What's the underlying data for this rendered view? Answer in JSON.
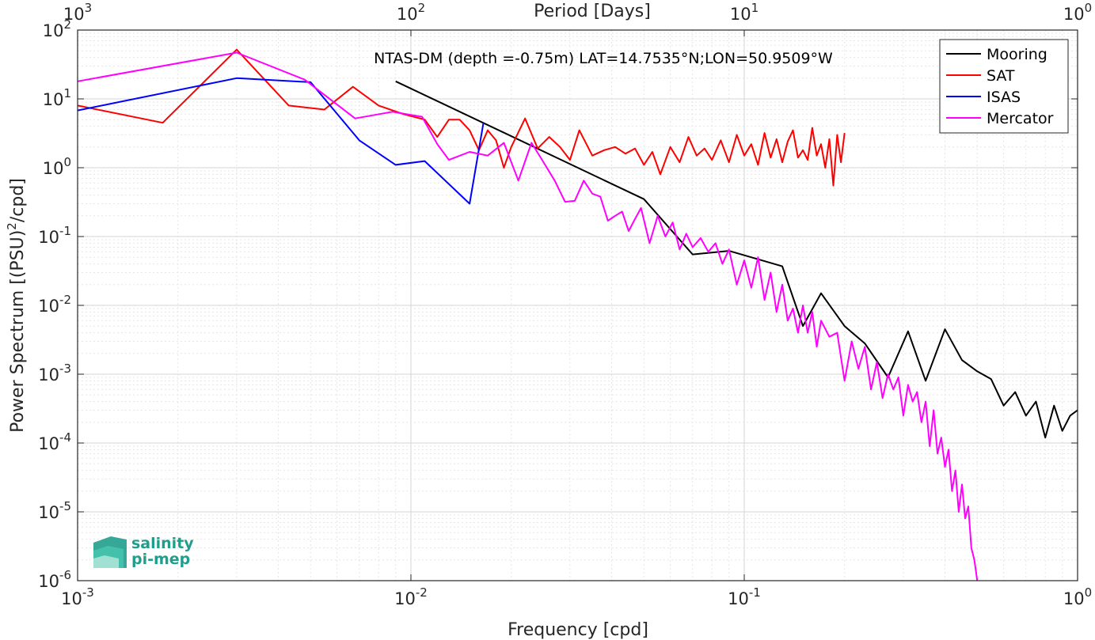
{
  "chart_data": {
    "type": "line",
    "title": "NTAS-DM (depth =-0.75m) LAT=14.7535°N;LON=50.9509°W",
    "xlabel": "Frequency [cpd]",
    "ylabel": "Power Spectrum [(PSU)^2/cpd]",
    "top_xlabel": "Period [Days]",
    "xscale": "log",
    "yscale": "log",
    "xlim": [
      0.001,
      1
    ],
    "ylim": [
      1e-06,
      100
    ],
    "x_ticks": [
      0.001,
      0.01,
      0.1,
      1
    ],
    "x_tick_exponents": [
      "-3",
      "-2",
      "-1",
      "0"
    ],
    "y_ticks": [
      1e-06,
      1e-05,
      0.0001,
      0.001,
      0.01,
      0.1,
      1,
      10,
      100
    ],
    "y_tick_exponents": [
      "-6",
      "-5",
      "-4",
      "-3",
      "-2",
      "-1",
      "0",
      "1",
      "2"
    ],
    "top_ticks_days": [
      1000,
      100,
      10,
      1
    ],
    "top_tick_exponents": [
      "3",
      "2",
      "1",
      "0"
    ],
    "grid": true,
    "legend_position": "top-right",
    "series": [
      {
        "name": "Mooring",
        "color": "#000000",
        "x": [
          0.009,
          0.05,
          0.07,
          0.09,
          0.13,
          0.15,
          0.17,
          0.2,
          0.23,
          0.27,
          0.31,
          0.35,
          0.4,
          0.45,
          0.5,
          0.55,
          0.6,
          0.65,
          0.7,
          0.75,
          0.8,
          0.85,
          0.9,
          0.95,
          1.0
        ],
        "y": [
          18,
          0.35,
          0.055,
          0.062,
          0.037,
          0.005,
          0.015,
          0.005,
          0.0028,
          0.0009,
          0.0042,
          0.0008,
          0.0045,
          0.0016,
          0.0011,
          0.00085,
          0.00035,
          0.00055,
          0.00025,
          0.0004,
          0.00012,
          0.00035,
          0.00015,
          0.00025,
          0.0003
        ]
      },
      {
        "name": "SAT",
        "color": "#ff0000",
        "x": [
          0.001,
          0.0018,
          0.003,
          0.0043,
          0.0055,
          0.0067,
          0.008,
          0.0095,
          0.011,
          0.012,
          0.013,
          0.014,
          0.015,
          0.016,
          0.017,
          0.018,
          0.019,
          0.02,
          0.022,
          0.024,
          0.026,
          0.028,
          0.03,
          0.032,
          0.035,
          0.038,
          0.041,
          0.044,
          0.047,
          0.05,
          0.053,
          0.056,
          0.06,
          0.064,
          0.068,
          0.072,
          0.076,
          0.08,
          0.085,
          0.09,
          0.095,
          0.1,
          0.105,
          0.11,
          0.115,
          0.12,
          0.125,
          0.13,
          0.135,
          0.14,
          0.145,
          0.15,
          0.155,
          0.16,
          0.165,
          0.17,
          0.175,
          0.18,
          0.185,
          0.19,
          0.195,
          0.2
        ],
        "y": [
          8,
          4.5,
          52,
          8,
          7,
          15,
          8,
          6,
          5,
          2.8,
          5,
          5,
          3.5,
          1.8,
          3.5,
          2.5,
          1.0,
          2.0,
          5.2,
          1.9,
          2.8,
          2.0,
          1.3,
          3.5,
          1.5,
          1.8,
          2.0,
          1.6,
          1.9,
          1.1,
          1.7,
          0.8,
          2.0,
          1.2,
          2.8,
          1.5,
          1.9,
          1.3,
          2.5,
          1.2,
          3.0,
          1.5,
          2.2,
          1.1,
          3.2,
          1.4,
          2.6,
          1.2,
          2.4,
          3.5,
          1.4,
          1.8,
          1.3,
          3.8,
          1.5,
          2.2,
          1.0,
          2.6,
          0.55,
          3.0,
          1.2,
          3.2
        ]
      },
      {
        "name": "ISAS",
        "color": "#0000ff",
        "x": [
          0.001,
          0.003,
          0.005,
          0.007,
          0.009,
          0.011,
          0.015,
          0.0165
        ],
        "y": [
          6.8,
          20,
          17.5,
          2.5,
          1.1,
          1.25,
          0.3,
          4.5
        ]
      },
      {
        "name": "Mercator",
        "color": "#ff00ff",
        "x": [
          0.001,
          0.003,
          0.0048,
          0.0068,
          0.0088,
          0.0108,
          0.012,
          0.013,
          0.015,
          0.017,
          0.019,
          0.021,
          0.023,
          0.025,
          0.027,
          0.029,
          0.031,
          0.033,
          0.035,
          0.037,
          0.039,
          0.041,
          0.043,
          0.045,
          0.047,
          0.049,
          0.052,
          0.055,
          0.058,
          0.061,
          0.064,
          0.067,
          0.07,
          0.074,
          0.078,
          0.082,
          0.086,
          0.09,
          0.095,
          0.1,
          0.105,
          0.11,
          0.115,
          0.12,
          0.125,
          0.13,
          0.135,
          0.14,
          0.145,
          0.15,
          0.155,
          0.16,
          0.165,
          0.17,
          0.18,
          0.19,
          0.2,
          0.21,
          0.22,
          0.23,
          0.24,
          0.25,
          0.26,
          0.27,
          0.28,
          0.29,
          0.3,
          0.31,
          0.32,
          0.33,
          0.34,
          0.35,
          0.36,
          0.37,
          0.38,
          0.39,
          0.4,
          0.41,
          0.42,
          0.43,
          0.44,
          0.45,
          0.46,
          0.47,
          0.48,
          0.49,
          0.5
        ],
        "y": [
          18,
          47,
          19,
          5.2,
          6.5,
          5.5,
          2.2,
          1.3,
          1.7,
          1.5,
          2.3,
          0.65,
          2.3,
          1.2,
          0.65,
          0.32,
          0.33,
          0.65,
          0.42,
          0.38,
          0.17,
          0.2,
          0.23,
          0.12,
          0.18,
          0.26,
          0.08,
          0.2,
          0.1,
          0.16,
          0.065,
          0.11,
          0.07,
          0.095,
          0.06,
          0.08,
          0.04,
          0.065,
          0.02,
          0.045,
          0.018,
          0.05,
          0.012,
          0.03,
          0.008,
          0.02,
          0.006,
          0.009,
          0.004,
          0.01,
          0.004,
          0.008,
          0.0025,
          0.006,
          0.0035,
          0.004,
          0.0008,
          0.003,
          0.0012,
          0.0025,
          0.0006,
          0.0015,
          0.00045,
          0.001,
          0.0006,
          0.0009,
          0.00025,
          0.0007,
          0.0004,
          0.00055,
          0.0002,
          0.0004,
          9e-05,
          0.0003,
          7e-05,
          0.00012,
          4.5e-05,
          8e-05,
          2e-05,
          4e-05,
          1e-05,
          2.5e-05,
          8e-06,
          1.2e-05,
          3e-06,
          2e-06,
          1e-06
        ]
      }
    ]
  },
  "logo": {
    "line1": "salinity",
    "line2": "pi-mep",
    "color": "#1f9e8c"
  }
}
